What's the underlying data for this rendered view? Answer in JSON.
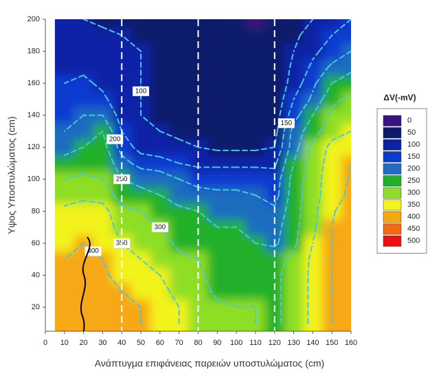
{
  "chart_data": {
    "type": "contour",
    "x_label": "Ανάπτυγμα επιφάνειας παρειών υποστυλώματος (cm)",
    "y_label": "Υψος Υποστυλώματος (cm)",
    "xlim": [
      0,
      160
    ],
    "ylim": [
      5,
      200
    ],
    "xticks": [
      0,
      10,
      20,
      30,
      40,
      50,
      60,
      70,
      80,
      90,
      100,
      110,
      120,
      130,
      140,
      150,
      160
    ],
    "yticks": [
      20,
      40,
      60,
      80,
      100,
      120,
      140,
      160,
      180,
      200
    ],
    "x": [
      10,
      20,
      30,
      40,
      50,
      60,
      70,
      80,
      90,
      100,
      110,
      120,
      130,
      140,
      150,
      160
    ],
    "y": [
      10,
      20,
      30,
      40,
      50,
      60,
      70,
      80,
      90,
      100,
      110,
      120,
      130,
      140,
      150,
      160,
      170,
      180,
      190,
      200
    ],
    "z": [
      [
        430,
        440,
        430,
        410,
        400,
        380,
        350,
        340,
        310,
        300,
        300,
        290,
        320,
        360,
        400,
        430
      ],
      [
        430,
        440,
        430,
        410,
        400,
        380,
        350,
        340,
        310,
        300,
        300,
        290,
        320,
        360,
        400,
        430
      ],
      [
        420,
        430,
        420,
        400,
        390,
        370,
        330,
        320,
        290,
        285,
        280,
        290,
        320,
        360,
        400,
        430
      ],
      [
        410,
        420,
        410,
        380,
        370,
        350,
        320,
        310,
        280,
        280,
        280,
        290,
        320,
        360,
        400,
        430
      ],
      [
        400,
        410,
        400,
        370,
        350,
        330,
        310,
        300,
        275,
        270,
        270,
        285,
        310,
        360,
        400,
        430
      ],
      [
        390,
        400,
        390,
        350,
        340,
        320,
        290,
        280,
        260,
        260,
        250,
        240,
        290,
        350,
        400,
        430
      ],
      [
        380,
        390,
        380,
        330,
        320,
        300,
        270,
        260,
        250,
        250,
        245,
        230,
        285,
        340,
        400,
        430
      ],
      [
        360,
        370,
        370,
        310,
        300,
        280,
        260,
        250,
        245,
        245,
        240,
        210,
        280,
        335,
        395,
        425
      ],
      [
        330,
        340,
        330,
        280,
        260,
        250,
        230,
        220,
        210,
        210,
        200,
        180,
        275,
        330,
        380,
        410
      ],
      [
        300,
        310,
        300,
        250,
        240,
        230,
        200,
        180,
        180,
        180,
        180,
        170,
        270,
        330,
        375,
        405
      ],
      [
        270,
        280,
        290,
        220,
        180,
        170,
        150,
        140,
        140,
        140,
        140,
        140,
        250,
        325,
        370,
        400
      ],
      [
        230,
        250,
        270,
        180,
        130,
        120,
        110,
        100,
        90,
        90,
        90,
        100,
        230,
        310,
        365,
        395
      ],
      [
        200,
        220,
        250,
        150,
        110,
        100,
        90,
        80,
        70,
        70,
        70,
        80,
        220,
        280,
        330,
        350
      ],
      [
        190,
        200,
        200,
        130,
        100,
        95,
        85,
        70,
        60,
        60,
        60,
        70,
        180,
        250,
        310,
        330
      ],
      [
        170,
        180,
        160,
        120,
        100,
        90,
        80,
        65,
        55,
        55,
        55,
        60,
        150,
        210,
        290,
        310
      ],
      [
        150,
        160,
        140,
        110,
        100,
        90,
        80,
        65,
        55,
        55,
        55,
        60,
        120,
        190,
        250,
        270
      ],
      [
        130,
        140,
        120,
        105,
        100,
        90,
        80,
        65,
        55,
        55,
        50,
        60,
        110,
        160,
        210,
        240
      ],
      [
        120,
        130,
        110,
        100,
        100,
        90,
        80,
        65,
        55,
        55,
        50,
        60,
        100,
        140,
        170,
        200
      ],
      [
        110,
        115,
        105,
        100,
        95,
        85,
        75,
        60,
        50,
        50,
        50,
        55,
        90,
        120,
        150,
        170
      ],
      [
        100,
        100,
        95,
        90,
        85,
        75,
        65,
        55,
        50,
        50,
        45,
        50,
        80,
        100,
        130,
        150
      ]
    ],
    "legend_title": "ΔV(-mV)",
    "levels": [
      0,
      50,
      100,
      150,
      200,
      250,
      300,
      350,
      400,
      450,
      500
    ],
    "level_colors": [
      "#3a1282",
      "#0c1a6a",
      "#0a22a6",
      "#0b3bd0",
      "#1f6cc0",
      "#22b02c",
      "#8ede28",
      "#f3f31c",
      "#f6a812",
      "#f26a14",
      "#ee1010"
    ],
    "contour_levels": [
      100,
      150,
      200,
      250,
      300,
      350,
      400
    ],
    "contour_color": "#48c8e0",
    "guides": [
      40,
      80,
      120
    ]
  }
}
